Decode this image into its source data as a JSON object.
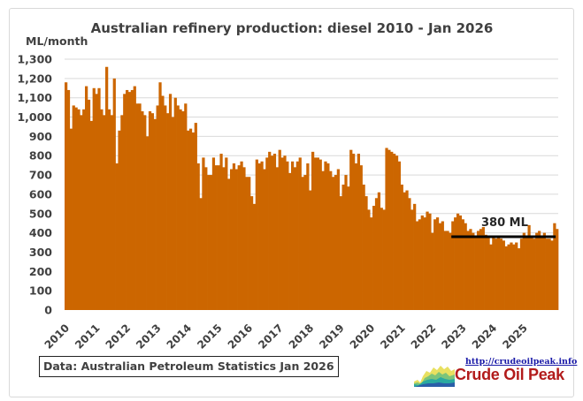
{
  "chart_data": {
    "type": "bar",
    "title": "Australian refinery production: diesel 2010 - Jan 2026",
    "ylabel": "ML/month",
    "xlabel": "",
    "ylim": [
      0,
      1300
    ],
    "yticks": [
      0,
      100,
      200,
      300,
      400,
      500,
      600,
      700,
      800,
      900,
      1000,
      1100,
      1200,
      1300
    ],
    "ytick_labels": [
      "0",
      "100",
      "200",
      "300",
      "400",
      "500",
      "600",
      "700",
      "800",
      "900",
      "1,000",
      "1,100",
      "1,200",
      "1,300"
    ],
    "xtick_labels": [
      "2010",
      "2011",
      "2012",
      "2013",
      "2014",
      "2015",
      "2016",
      "2017",
      "2018",
      "2019",
      "2020",
      "2021",
      "2022",
      "2023",
      "2024",
      "2025"
    ],
    "grid": true,
    "bar_color": "#cc6600",
    "period": "Monthly, Jan 2010 - Jan 2026",
    "series": [
      {
        "name": "Diesel production (ML/month)",
        "start": "2010-01",
        "values": [
          1180,
          1140,
          940,
          1060,
          1050,
          1040,
          1010,
          1040,
          1160,
          1090,
          980,
          1150,
          1120,
          1150,
          1040,
          1010,
          1260,
          1040,
          1010,
          1200,
          760,
          930,
          1010,
          1120,
          1140,
          1130,
          1140,
          1160,
          1070,
          1070,
          1030,
          1010,
          900,
          1030,
          1020,
          990,
          1060,
          1180,
          1110,
          1060,
          1020,
          1120,
          1000,
          1100,
          1060,
          1040,
          1030,
          1070,
          930,
          940,
          920,
          970,
          760,
          580,
          790,
          740,
          700,
          700,
          790,
          750,
          750,
          810,
          740,
          790,
          680,
          730,
          760,
          730,
          750,
          770,
          740,
          690,
          690,
          590,
          550,
          780,
          760,
          770,
          730,
          790,
          820,
          800,
          810,
          740,
          830,
          790,
          800,
          770,
          710,
          770,
          740,
          770,
          790,
          690,
          700,
          760,
          620,
          820,
          790,
          790,
          780,
          720,
          770,
          760,
          720,
          690,
          700,
          730,
          590,
          650,
          700,
          640,
          830,
          810,
          760,
          810,
          750,
          650,
          590,
          520,
          480,
          540,
          580,
          610,
          530,
          520,
          840,
          830,
          820,
          810,
          800,
          770,
          650,
          610,
          620,
          580,
          520,
          550,
          460,
          470,
          490,
          480,
          510,
          500,
          400,
          470,
          480,
          450,
          460,
          410,
          410,
          400,
          460,
          480,
          500,
          490,
          470,
          450,
          410,
          420,
          400,
          380,
          410,
          420,
          430,
          390,
          380,
          340,
          380,
          370,
          380,
          370,
          360,
          330,
          340,
          350,
          340,
          350,
          320,
          370,
          400,
          380,
          440,
          380,
          370,
          400,
          410,
          380,
          400,
          370,
          370,
          360,
          450,
          420
        ]
      }
    ],
    "annotations": [
      {
        "type": "hline",
        "value": 380,
        "from": "2022-09",
        "to": "2026-01",
        "color": "#000000",
        "label": "380 ML"
      }
    ]
  },
  "footer": {
    "source_label": "Data: Australian Petroleum Statistics Jan 2026",
    "logo_url": "http://crudeoilpeak.info",
    "logo_name": "Crude Oil Peak"
  }
}
